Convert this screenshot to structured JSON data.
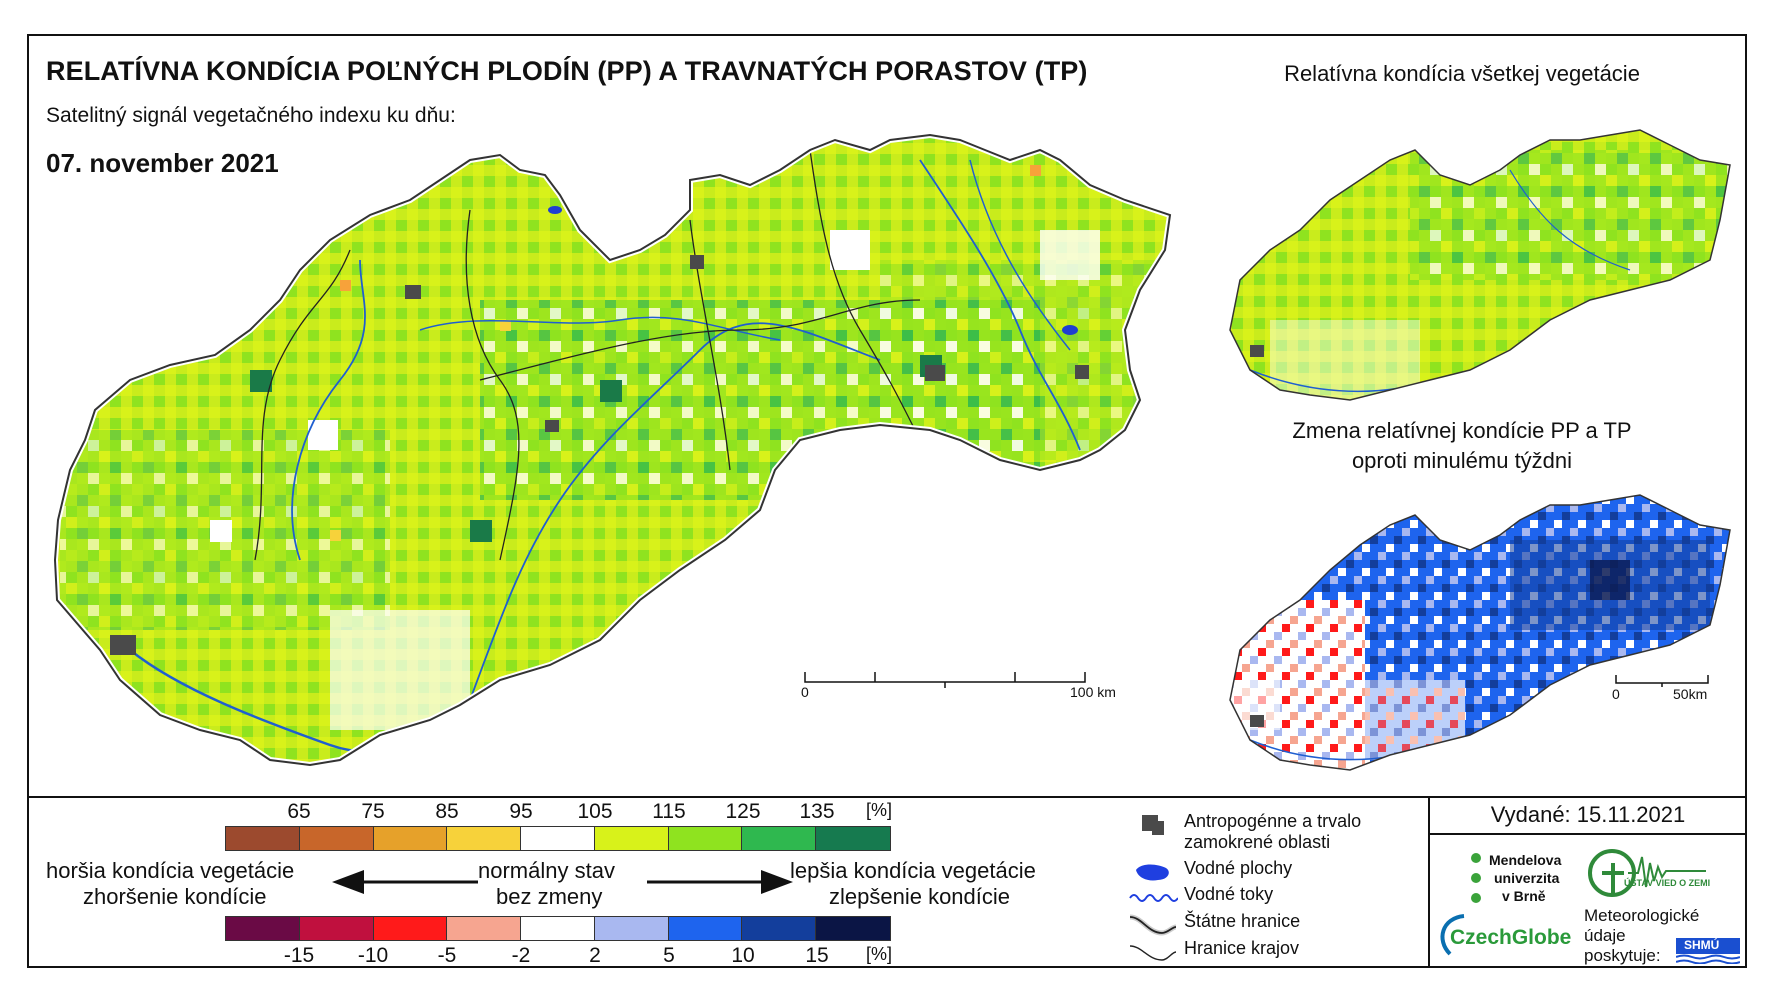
{
  "header": {
    "title": "RELATÍVNA KONDÍCIA POĽNÝCH PLODÍN (PP) A TRAVNATÝCH PORASTOV (TP)",
    "subtitle": "Satelitný signál vegetačného indexu ku dňu:",
    "date": "07. november 2021"
  },
  "panels": {
    "all_vegetation_title": "Relatívna kondícia všetkej vegetácie",
    "change_title_line1": "Zmena relatívnej kondície PP a TP",
    "change_title_line2": "oproti minulému týždni"
  },
  "scales": {
    "main": {
      "start": "0",
      "end": "100 km"
    },
    "small": {
      "start": "0",
      "end": "50km"
    }
  },
  "condition_legend": {
    "ticks": [
      "65",
      "75",
      "85",
      "95",
      "105",
      "115",
      "125",
      "135",
      "[%]"
    ],
    "colors": [
      "#9c4a2e",
      "#c8662a",
      "#e6a12a",
      "#f7d23a",
      "#ffffff",
      "#d8f21a",
      "#8fe31f",
      "#2fb84f",
      "#167a4f"
    ],
    "worse": "horšia kondícia vegetácie",
    "normal": "normálny stav",
    "better": "lepšia kondícia vegetácie"
  },
  "change_legend": {
    "ticks": [
      "-15",
      "-10",
      "-5",
      "-2",
      "2",
      "5",
      "10",
      "15",
      "[%]"
    ],
    "colors": [
      "#6a0a45",
      "#c0103e",
      "#ff1a1a",
      "#f6a590",
      "#ffffff",
      "#a9b8f0",
      "#1e64ee",
      "#133e9c",
      "#0b1545"
    ],
    "worse": "zhoršenie kondície",
    "normal": "bez zmeny",
    "better": "zlepšenie kondície"
  },
  "map_key": {
    "urban": [
      "Antropogénne a trvalo",
      "zamokrené oblasti"
    ],
    "water_areas": "Vodné plochy",
    "rivers": "Vodné toky",
    "state_border": "Štátne hranice",
    "region_border": "Hranice krajov"
  },
  "issued": "Vydané: 15.11.2021",
  "logos": {
    "mendel": [
      "Mendelova",
      "univerzita",
      "v Brně"
    ],
    "czechglobe": "CzechGlobe",
    "ustav": "ÚSTAV VIED O ZEMI",
    "meteo": [
      "Meteorologické",
      "údaje",
      "poskytuje:"
    ],
    "shmu": "SHMÚ"
  }
}
